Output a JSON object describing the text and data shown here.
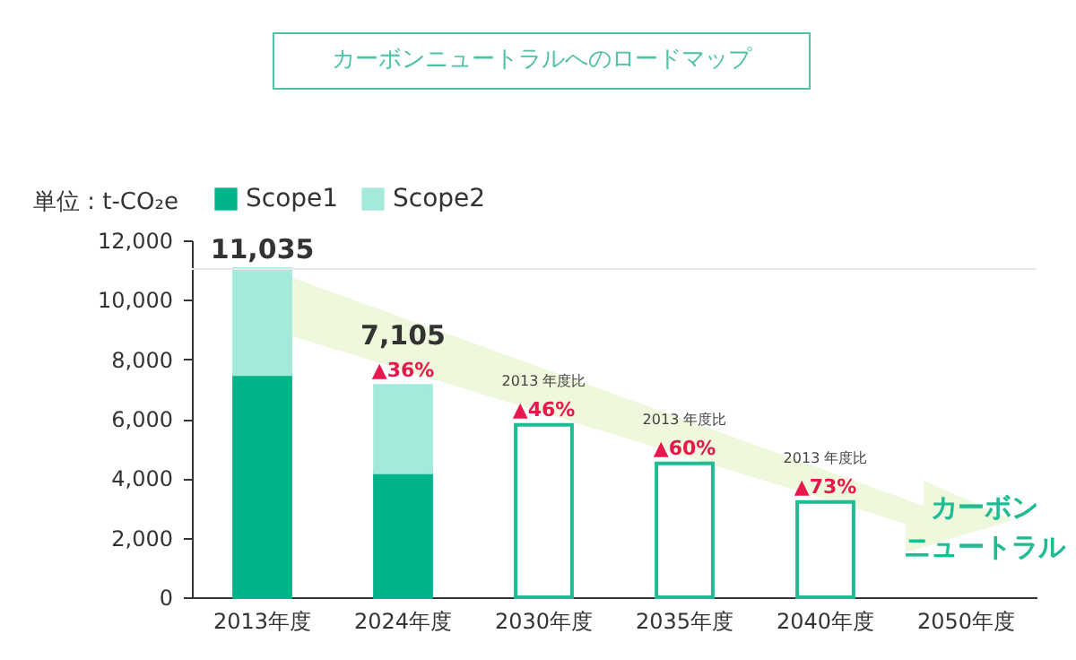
{
  "chart_data": {
    "type": "bar",
    "stacked": true,
    "title": "カーボンニュートラルへのロードマップ",
    "ylabel": "単位 : t-CO₂e",
    "categories": [
      "2013年度",
      "2024年度",
      "2030年度",
      "2035年度",
      "2040年度",
      "2050年度"
    ],
    "series": [
      {
        "name": "Scope1",
        "color": "#00b48a",
        "values": [
          7500,
          4200,
          null,
          null,
          null,
          null
        ]
      },
      {
        "name": "Scope2",
        "color": "#a4e9da",
        "values": [
          3535,
          2905,
          null,
          null,
          null,
          null
        ]
      },
      {
        "color": "#1fbb92",
        "values": [
          null,
          null,
          5800,
          4500,
          3200,
          null
        ]
      }
    ],
    "totals": [
      "11,035",
      "7,105",
      null,
      null,
      null,
      null
    ],
    "ylim": [
      0,
      12000
    ],
    "yticks": [
      {
        "value": 0,
        "label": "0"
      },
      {
        "value": 2000,
        "label": "2,000"
      },
      {
        "value": 4000,
        "label": "4,000"
      },
      {
        "value": 6000,
        "label": "6,000"
      },
      {
        "value": 8000,
        "label": "8,000"
      },
      {
        "value": 10000,
        "label": "10,000"
      },
      {
        "value": 12000,
        "label": "12,000"
      }
    ],
    "ref_lines": [
      {
        "axis": "y",
        "value": 11035,
        "color": "#e8e8e8"
      }
    ],
    "legend": "top left",
    "annotations": [
      {
        "text": "▲36%",
        "x": "2024年度",
        "y": 7105
      },
      "2013 年度比",
      {
        "text": "▲46%",
        "x": "2030年度",
        "y": 5800
      },
      "2013 年度比",
      {
        "text": "▲60%",
        "x": "2035年度",
        "y": 4500
      },
      "2013 年度比",
      {
        "text": "▲73%",
        "x": "2040年度",
        "y": 3200
      },
      "カーボンニュートラル"
    ]
  }
}
